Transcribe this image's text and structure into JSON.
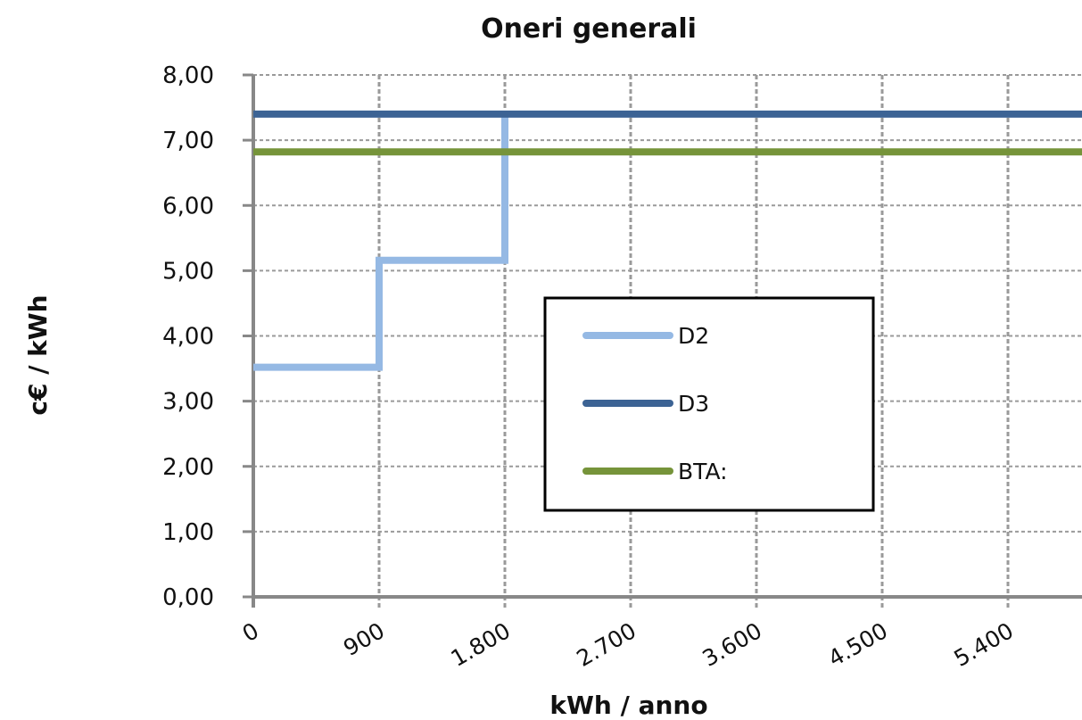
{
  "chart_data": {
    "type": "line",
    "title": "Oneri generali",
    "xlabel": "kWh / anno",
    "ylabel": "c€ / kWh",
    "x_ticks": [
      "0",
      "900",
      "1.800",
      "2.700",
      "3.600",
      "4.500",
      "5.400"
    ],
    "y_ticks": [
      "0,00",
      "1,00",
      "2,00",
      "3,00",
      "4,00",
      "5,00",
      "6,00",
      "7,00",
      "8,00"
    ],
    "xlim": [
      0,
      6200
    ],
    "ylim": [
      0,
      8
    ],
    "grid": true,
    "legend_position": "center",
    "series": [
      {
        "name": "D2",
        "color": "#95B9E4",
        "step": true,
        "points": [
          [
            0,
            3.52
          ],
          [
            900,
            3.52
          ],
          [
            900,
            5.16
          ],
          [
            1800,
            5.16
          ],
          [
            1800,
            7.4
          ]
        ]
      },
      {
        "name": "D3",
        "color": "#3C6394",
        "points": [
          [
            0,
            7.4
          ],
          [
            6200,
            7.4
          ]
        ]
      },
      {
        "name": "BTA:",
        "color": "#76943A",
        "points": [
          [
            0,
            6.82
          ],
          [
            6200,
            6.82
          ]
        ]
      }
    ]
  }
}
